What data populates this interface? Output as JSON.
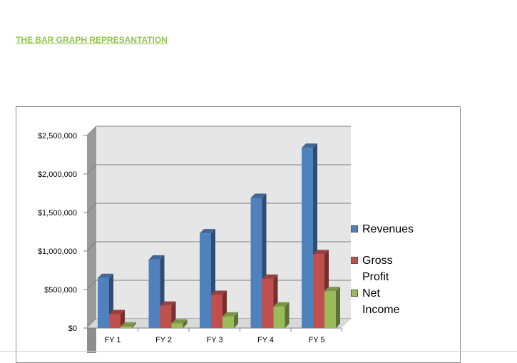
{
  "heading": "THE BAR GRAPH REPRESANTATION",
  "colors": {
    "heading": "#92c44f",
    "revenues": "#4f81bd",
    "gross_profit": "#c0504d",
    "net_income": "#9bbb59",
    "plot_back": "#e6e6e6",
    "plot_side": "#9a9a9a"
  },
  "chart_data": {
    "type": "bar",
    "categories": [
      "FY 1",
      "FY 2",
      "FY 3",
      "FY 4",
      "FY 5"
    ],
    "series": [
      {
        "name": "Revenues",
        "values": [
          650000,
          890000,
          1230000,
          1690000,
          2340000
        ]
      },
      {
        "name": "Gross Profit",
        "values": [
          180000,
          290000,
          430000,
          640000,
          960000
        ]
      },
      {
        "name": "Net Income",
        "values": [
          20000,
          60000,
          150000,
          280000,
          480000
        ]
      }
    ],
    "yticks": [
      "$0",
      "$500,000",
      "$1,000,000",
      "$1,500,000",
      "$2,000,000",
      "$2,500,000"
    ],
    "ylim": [
      0,
      2500000
    ],
    "grid": true,
    "legend_position": "right"
  }
}
